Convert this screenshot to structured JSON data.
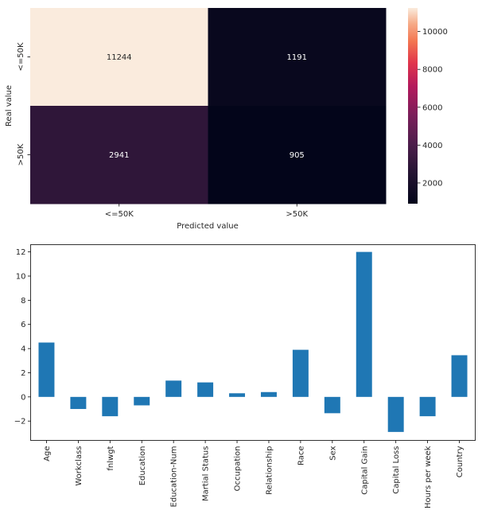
{
  "chart_data": [
    {
      "type": "heatmap",
      "title": "",
      "xlabel": "Predicted value",
      "ylabel": "Real value",
      "x_categories": [
        "<=50K",
        ">50K"
      ],
      "y_categories": [
        "<=50K",
        ">50K"
      ],
      "values": [
        [
          11244,
          1191
        ],
        [
          2941,
          905
        ]
      ],
      "value_labels": [
        [
          "11244",
          "1191"
        ],
        [
          "2941",
          "905"
        ]
      ],
      "colorbar": {
        "min": 905,
        "max": 11244,
        "ticks": [
          2000,
          4000,
          6000,
          8000,
          10000
        ],
        "tick_labels": [
          "2000",
          "4000",
          "6000",
          "8000",
          "10000"
        ],
        "colormap": "rocket"
      }
    },
    {
      "type": "bar",
      "title": "",
      "xlabel": "",
      "ylabel": "",
      "categories": [
        "Age",
        "Workclass",
        "fnlwgt",
        "Education",
        "Education-Num",
        "Martial Status",
        "Occupation",
        "Relationship",
        "Race",
        "Sex",
        "Capital Gain",
        "Capital Loss",
        "Hours per week",
        "Country"
      ],
      "values": [
        4.5,
        -1.0,
        -1.6,
        -0.7,
        1.35,
        1.2,
        0.3,
        0.4,
        3.9,
        -1.35,
        12.0,
        -2.9,
        -1.6,
        3.45
      ],
      "ylim": [
        -3.6,
        12.6
      ],
      "yticks": [
        -2,
        0,
        2,
        4,
        6,
        8,
        10,
        12
      ],
      "ytick_labels": [
        "−2",
        "0",
        "2",
        "4",
        "6",
        "8",
        "10",
        "12"
      ],
      "color": "#1f77b4",
      "grid": false
    }
  ]
}
